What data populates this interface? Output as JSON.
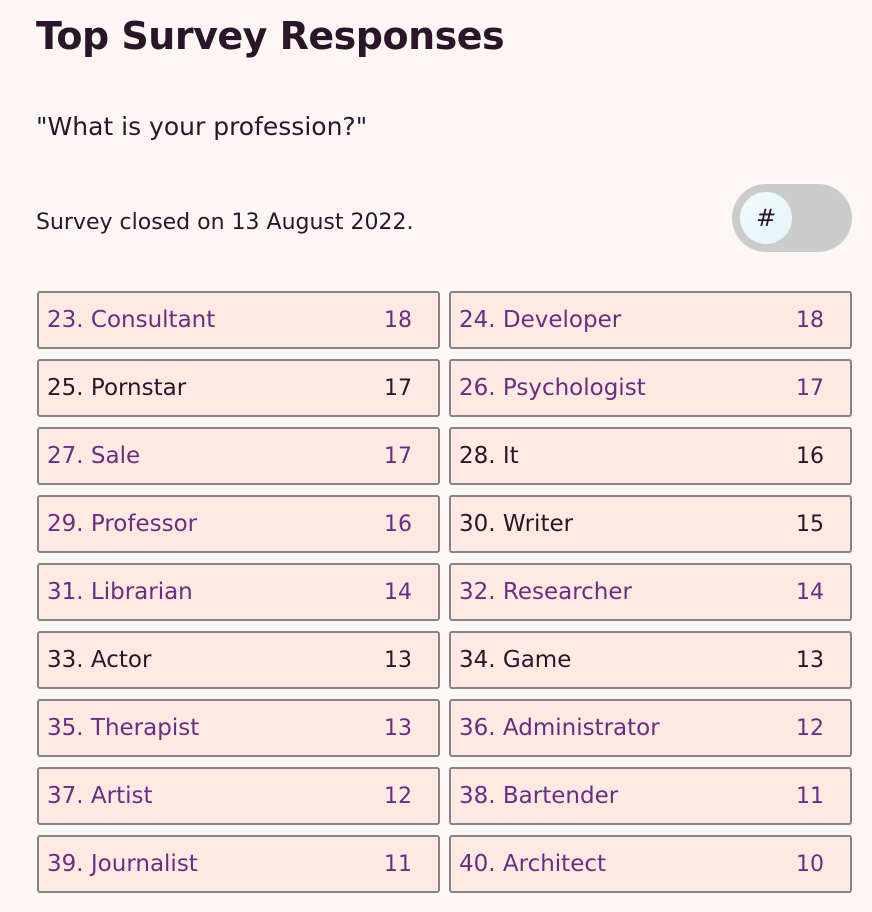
{
  "header": {
    "title": "Top Survey Responses",
    "question": "\"What is your profession?\"",
    "closed_text": "Survey closed on 13 August 2022."
  },
  "toggle": {
    "knob_label": "#",
    "state": "off",
    "track_color": "#cccccc"
  },
  "colors": {
    "background": "#fcf7f5",
    "item_background": "#ffe9e2",
    "item_border": "#858585",
    "link_text": "#6a2d82",
    "plain_text": "#2b1529"
  },
  "responses": [
    {
      "label": "23. Consultant",
      "count": "18",
      "link": true
    },
    {
      "label": "24. Developer",
      "count": "18",
      "link": true
    },
    {
      "label": "25. Pornstar",
      "count": "17",
      "link": false
    },
    {
      "label": "26. Psychologist",
      "count": "17",
      "link": true
    },
    {
      "label": "27. Sale",
      "count": "17",
      "link": true
    },
    {
      "label": "28. It",
      "count": "16",
      "link": false
    },
    {
      "label": "29. Professor",
      "count": "16",
      "link": true
    },
    {
      "label": "30. Writer",
      "count": "15",
      "link": false
    },
    {
      "label": "31. Librarian",
      "count": "14",
      "link": true
    },
    {
      "label": "32. Researcher",
      "count": "14",
      "link": true
    },
    {
      "label": "33. Actor",
      "count": "13",
      "link": false
    },
    {
      "label": "34. Game",
      "count": "13",
      "link": false
    },
    {
      "label": "35. Therapist",
      "count": "13",
      "link": true
    },
    {
      "label": "36. Administrator",
      "count": "12",
      "link": true
    },
    {
      "label": "37. Artist",
      "count": "12",
      "link": true
    },
    {
      "label": "38. Bartender",
      "count": "11",
      "link": true
    },
    {
      "label": "39. Journalist",
      "count": "11",
      "link": true
    },
    {
      "label": "40. Architect",
      "count": "10",
      "link": true
    }
  ]
}
